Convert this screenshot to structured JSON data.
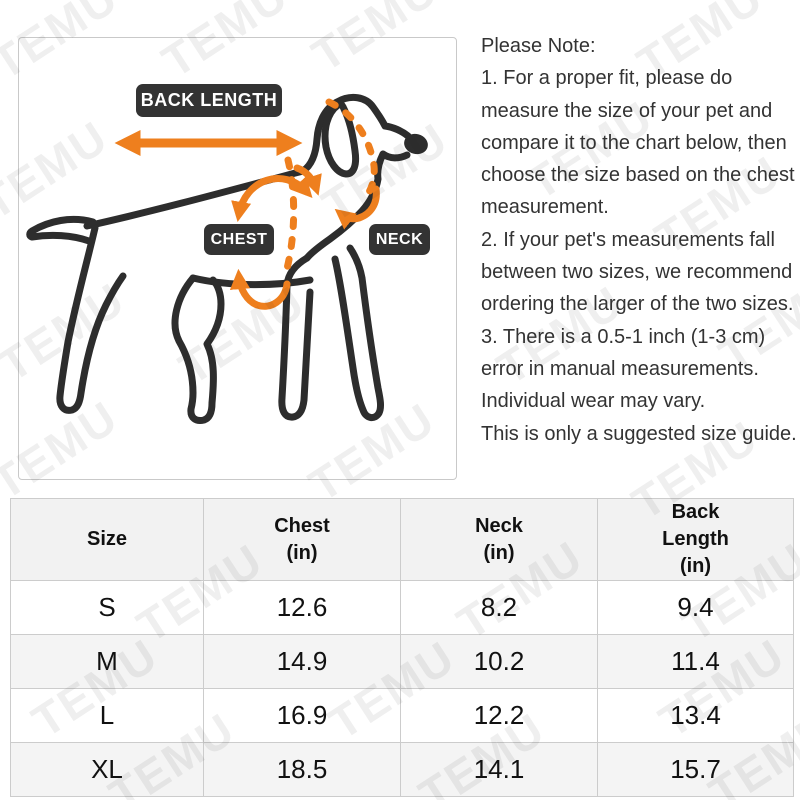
{
  "colors": {
    "accent_orange": "#ee7f1e",
    "dog_outline": "#2d2d2d",
    "label_bg": "#333333",
    "label_text": "#ffffff",
    "note_text": "#333333",
    "table_border": "#cccccc",
    "header_bg": "#f2f2f2",
    "alt_row_bg": "#f4f4f4"
  },
  "watermark": {
    "text": "TEMU"
  },
  "diagram": {
    "back_length_label": "BACK LENGTH",
    "chest_label": "CHEST",
    "neck_label": "NECK"
  },
  "note": {
    "lines": [
      "Please Note:",
      "1. For a proper fit, please do",
      "measure the size of your pet and",
      "compare it to the chart below, then",
      "choose the size based on the chest",
      "measurement.",
      "2. If your pet's measurements fall",
      "between two sizes, we recommend",
      "ordering the larger of the two sizes.",
      "3. There is a 0.5-1 inch (1-3 cm)",
      "error in manual measurements.",
      "Individual wear may vary.",
      "This is only a suggested size guide."
    ]
  },
  "size_table": {
    "headers": [
      "Size",
      "Chest\n(in)",
      "Neck\n(in)",
      "Back\nLength\n(in)"
    ],
    "rows": [
      {
        "size": "S",
        "chest": "12.6",
        "neck": "8.2",
        "back_length": "9.4"
      },
      {
        "size": "M",
        "chest": "14.9",
        "neck": "10.2",
        "back_length": "11.4"
      },
      {
        "size": "L",
        "chest": "16.9",
        "neck": "12.2",
        "back_length": "13.4"
      },
      {
        "size": "XL",
        "chest": "18.5",
        "neck": "14.1",
        "back_length": "15.7"
      }
    ]
  }
}
